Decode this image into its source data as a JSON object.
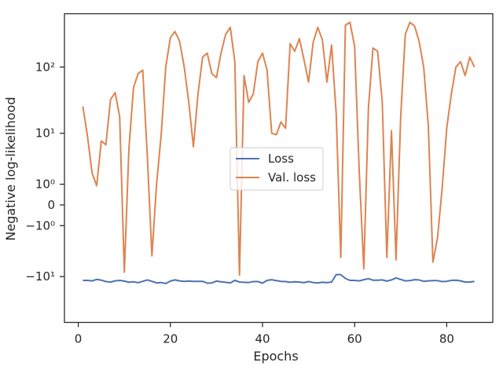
{
  "chart_data": {
    "type": "line",
    "title": "",
    "xlabel": "Epochs",
    "ylabel": "Negative log-likelihood",
    "yscale": "symlog",
    "xlim": [
      -3,
      90
    ],
    "ylim": [
      -50,
      600
    ],
    "x_ticks": [
      0,
      20,
      40,
      60,
      80
    ],
    "y_ticks": [
      {
        "value": -10,
        "label": "−10¹"
      },
      {
        "value": -1,
        "label": "−10⁰"
      },
      {
        "value": 0,
        "label": "0"
      },
      {
        "value": 1,
        "label": "10⁰"
      },
      {
        "value": 10,
        "label": "10¹"
      },
      {
        "value": 100,
        "label": "10²"
      }
    ],
    "grid": false,
    "legend_position": "center",
    "series": [
      {
        "name": "Loss",
        "color": "#4c72b0",
        "x": [
          1,
          2,
          3,
          4,
          5,
          6,
          7,
          8,
          9,
          10,
          11,
          12,
          13,
          14,
          15,
          16,
          17,
          18,
          19,
          20,
          21,
          22,
          23,
          24,
          25,
          26,
          27,
          28,
          29,
          30,
          31,
          32,
          33,
          34,
          35,
          36,
          37,
          38,
          39,
          40,
          41,
          42,
          43,
          44,
          45,
          46,
          47,
          48,
          49,
          50,
          51,
          52,
          53,
          54,
          55,
          56,
          57,
          58,
          59,
          60,
          61,
          62,
          63,
          64,
          65,
          66,
          67,
          68,
          69,
          70,
          71,
          72,
          73,
          74,
          75,
          76,
          77,
          78,
          79,
          80,
          81,
          82,
          83,
          84,
          85,
          86
        ],
        "values": [
          -11.5,
          -11.5,
          -11.7,
          -11.1,
          -11.4,
          -12.0,
          -12.2,
          -11.7,
          -11.5,
          -11.8,
          -12.3,
          -12.1,
          -12.5,
          -11.9,
          -11.3,
          -11.9,
          -12.6,
          -12.4,
          -12.9,
          -11.8,
          -11.3,
          -11.7,
          -11.9,
          -11.8,
          -11.9,
          -11.9,
          -11.9,
          -12.7,
          -12.6,
          -11.8,
          -12.1,
          -12.3,
          -12.6,
          -11.5,
          -12.2,
          -12.3,
          -12.4,
          -12.0,
          -12.0,
          -12.7,
          -11.5,
          -11.2,
          -11.6,
          -11.9,
          -12.0,
          -12.3,
          -12.1,
          -12.2,
          -12.5,
          -12.0,
          -12.4,
          -12.6,
          -12.3,
          -12.5,
          -12.2,
          -9.3,
          -9.3,
          -10.7,
          -11.5,
          -11.5,
          -11.7,
          -11.2,
          -10.8,
          -11.4,
          -11.4,
          -11.3,
          -11.8,
          -11.3,
          -10.5,
          -11.1,
          -11.7,
          -11.6,
          -11.2,
          -11.3,
          -11.9,
          -11.7,
          -11.6,
          -11.6,
          -12.0,
          -11.9,
          -11.5,
          -11.4,
          -11.7,
          -12.2,
          -12.2,
          -11.9
        ]
      },
      {
        "name": "Val. loss",
        "color": "#dd8452",
        "x": [
          1,
          2,
          3,
          4,
          5,
          6,
          7,
          8,
          9,
          10,
          11,
          12,
          13,
          14,
          15,
          16,
          17,
          18,
          19,
          20,
          21,
          22,
          23,
          24,
          25,
          26,
          27,
          28,
          29,
          30,
          31,
          32,
          33,
          34,
          35,
          36,
          37,
          38,
          39,
          40,
          41,
          42,
          43,
          44,
          45,
          46,
          47,
          48,
          49,
          50,
          51,
          52,
          53,
          54,
          55,
          56,
          57,
          58,
          59,
          60,
          61,
          62,
          63,
          64,
          65,
          66,
          67,
          68,
          69,
          70,
          71,
          72,
          73,
          74,
          75,
          76,
          77,
          78,
          79,
          80,
          81,
          82,
          83,
          84,
          85,
          86
        ],
        "values": [
          26,
          9,
          1.9,
          0.9,
          7.5,
          6.5,
          33,
          42,
          18,
          -8.5,
          5.5,
          50,
          80,
          90,
          4,
          -4.5,
          1,
          9.5,
          100,
          270,
          330,
          240,
          100,
          30,
          6,
          40,
          140,
          160,
          80,
          70,
          160,
          300,
          380,
          120,
          -9.5,
          75,
          30,
          40,
          120,
          160,
          90,
          10,
          9.5,
          15,
          12,
          220,
          170,
          260,
          130,
          60,
          230,
          380,
          250,
          60,
          210,
          20,
          -4.8,
          410,
          450,
          200,
          2,
          -7.5,
          25,
          190,
          170,
          30,
          -4.8,
          11,
          -5.3,
          18,
          300,
          450,
          400,
          240,
          100,
          13,
          -5.8,
          -2,
          0.7,
          12,
          40,
          100,
          120,
          75,
          140,
          100
        ]
      }
    ]
  }
}
